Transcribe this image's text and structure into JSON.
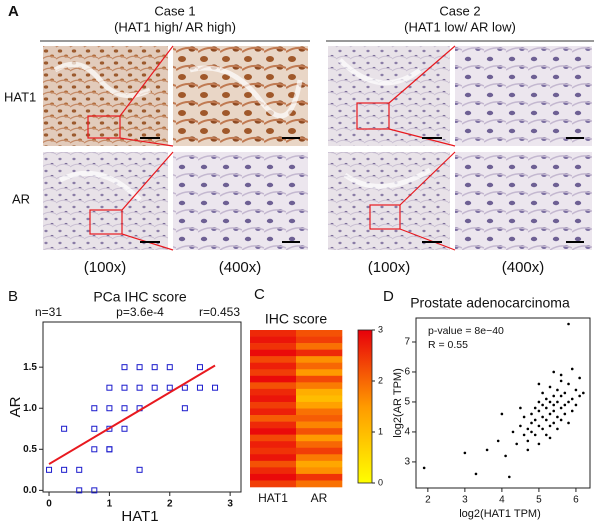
{
  "panel_a": {
    "label": "A",
    "cases": [
      {
        "title": "Case 1",
        "subtitle": "(HAT1 high/ AR high)",
        "magnifications": [
          "(100x)",
          "(400x)"
        ]
      },
      {
        "title": "Case 2",
        "subtitle": "(HAT1 low/ AR low)",
        "magnifications": [
          "(100x)",
          "(400x)"
        ]
      }
    ],
    "rows": [
      "HAT1",
      "AR"
    ]
  },
  "chart_data": [
    {
      "type": "scatter",
      "panel_label": "B",
      "title": "PCa IHC score",
      "annotations": [
        "n=31",
        "p=3.6e-4",
        "r=0.453"
      ],
      "xlabel": "HAT1",
      "ylabel": "AR",
      "x": [
        0,
        0.25,
        0.25,
        0.5,
        0.5,
        0.75,
        0.75,
        0.75,
        0.75,
        1,
        1,
        1,
        1,
        1.25,
        1.25,
        1.25,
        1.25,
        1.5,
        1.5,
        1.5,
        1.5,
        1.75,
        1.75,
        2,
        2,
        2.25,
        2.25,
        2.5,
        2.5,
        2.75,
        1
      ],
      "values": [
        0.25,
        0.25,
        0.75,
        0.25,
        0,
        0,
        0.5,
        0.75,
        1,
        1,
        0.75,
        0.5,
        1.25,
        1.5,
        1,
        1.25,
        0.75,
        1.5,
        1.25,
        1,
        0.25,
        1.5,
        1.25,
        1.5,
        1.25,
        1.25,
        1,
        1.5,
        1.25,
        1.25,
        0.5
      ],
      "color": "#1a1acc",
      "marker": "square-open",
      "fit": {
        "x": [
          0,
          2.75
        ],
        "values": [
          0.32,
          1.52
        ],
        "color": "#e8191f"
      },
      "xlim": [
        -0.1,
        3.18
      ],
      "ylim": [
        -0.02,
        2.05
      ],
      "xticks": [
        0,
        1,
        2,
        3
      ],
      "yticks": [
        {
          "value": 0,
          "label": "0.0"
        },
        {
          "value": 0.5,
          "label": "0.5"
        },
        {
          "value": 1,
          "label": "1.0"
        },
        {
          "value": 1.5,
          "label": "1.5"
        }
      ]
    },
    {
      "type": "heatmap",
      "panel_label": "C",
      "title": "IHC score",
      "columns": [
        "HAT1",
        "AR"
      ],
      "values": [
        [
          2.6,
          2.2
        ],
        [
          2.8,
          2.4
        ],
        [
          2.5,
          1.9
        ],
        [
          2.9,
          2.6
        ],
        [
          2.3,
          1.6
        ],
        [
          2.7,
          2.0
        ],
        [
          2.4,
          1.5
        ],
        [
          2.9,
          2.3
        ],
        [
          2.2,
          1.8
        ],
        [
          2.6,
          1.2
        ],
        [
          2.8,
          1.0
        ],
        [
          2.4,
          1.4
        ],
        [
          2.7,
          1.9
        ],
        [
          2.1,
          2.1
        ],
        [
          2.6,
          1.7
        ],
        [
          2.9,
          2.2
        ],
        [
          2.3,
          1.5
        ],
        [
          2.7,
          2.0
        ],
        [
          2.5,
          2.4
        ],
        [
          2.8,
          1.8
        ],
        [
          2.2,
          1.3
        ],
        [
          2.6,
          1.6
        ],
        [
          2.9,
          2.5
        ],
        [
          2.4,
          1.9
        ]
      ],
      "colormap": [
        "#ffff00",
        "#ff9a00",
        "#e8000b"
      ],
      "clim": [
        0,
        3
      ],
      "cticks": [
        0,
        1,
        2,
        3
      ]
    },
    {
      "type": "scatter",
      "panel_label": "D",
      "title": "Prostate adenocarcinoma",
      "annotations": [
        "p-value = 8e−40",
        "R = 0.55"
      ],
      "xlabel": "log2(HAT1 TPM)",
      "ylabel": "log2(AR TPM)",
      "x": [
        1.9,
        3.0,
        3.3,
        4.2,
        3.6,
        3.9,
        4.1,
        4.3,
        4.4,
        4.5,
        4.6,
        4.6,
        4.7,
        4.7,
        4.8,
        4.8,
        4.8,
        4.9,
        4.9,
        4.9,
        5.0,
        5.0,
        5.0,
        5.0,
        5.1,
        5.1,
        5.1,
        5.1,
        5.2,
        5.2,
        5.2,
        5.2,
        5.3,
        5.3,
        5.3,
        5.3,
        5.4,
        5.4,
        5.4,
        5.4,
        5.5,
        5.5,
        5.5,
        5.5,
        5.6,
        5.6,
        5.6,
        5.6,
        5.7,
        5.7,
        5.7,
        5.8,
        5.8,
        5.8,
        5.9,
        5.9,
        6.0,
        6.0,
        6.1,
        6.1,
        5.8,
        4.5,
        4.0,
        5.3,
        5.6,
        6.2,
        5.0,
        4.7,
        5.4,
        5.9
      ],
      "values": [
        2.8,
        3.3,
        2.6,
        2.5,
        3.4,
        3.7,
        3.2,
        4.0,
        3.6,
        4.2,
        3.9,
        4.5,
        4.1,
        3.7,
        4.6,
        4.0,
        4.3,
        4.8,
        3.9,
        4.4,
        4.2,
        4.7,
        5.0,
        3.6,
        4.5,
        4.9,
        4.1,
        5.3,
        4.4,
        4.8,
        5.1,
        3.9,
        4.6,
        5.0,
        4.2,
        5.5,
        4.7,
        4.3,
        5.2,
        4.9,
        4.5,
        5.0,
        5.4,
        4.1,
        4.8,
        5.2,
        4.4,
        5.7,
        4.9,
        5.3,
        4.6,
        5.0,
        5.6,
        4.3,
        5.1,
        4.7,
        5.4,
        4.9,
        5.2,
        5.8,
        7.6,
        4.8,
        4.6,
        3.8,
        5.9,
        5.3,
        5.6,
        3.4,
        6.0,
        6.1
      ],
      "color": "#000000",
      "marker": "dot",
      "xlim": [
        1.68,
        6.38
      ],
      "ylim": [
        2.13,
        7.8
      ],
      "xticks": [
        2,
        3,
        4,
        5,
        6
      ],
      "yticks": [
        3,
        4,
        5,
        6,
        7
      ]
    }
  ]
}
